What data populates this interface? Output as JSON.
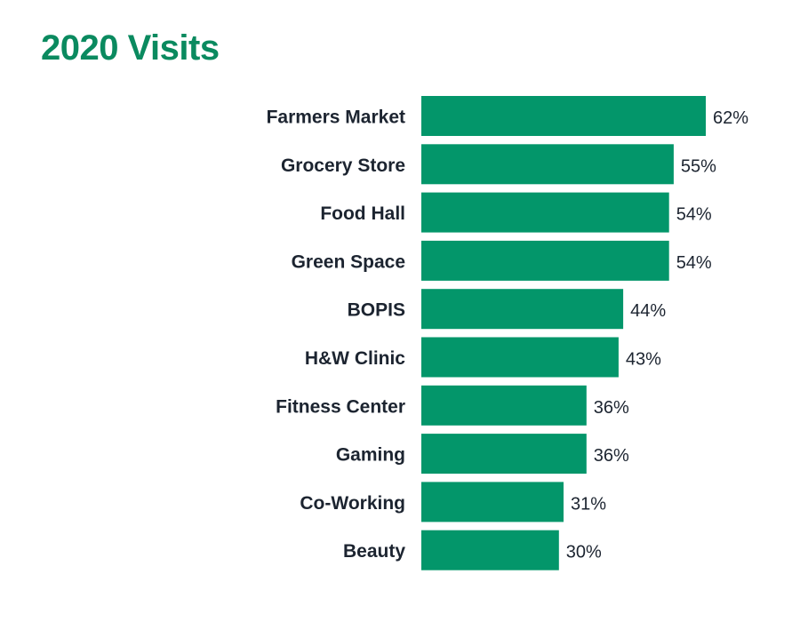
{
  "chart_data": {
    "type": "bar",
    "orientation": "horizontal",
    "title": "2020 Visits",
    "categories": [
      "Farmers Market",
      "Grocery Store",
      "Food Hall",
      "Green Space",
      "BOPIS",
      "H&W Clinic",
      "Fitness Center",
      "Gaming",
      "Co-Working",
      "Beauty"
    ],
    "values": [
      62,
      55,
      54,
      54,
      44,
      43,
      36,
      36,
      31,
      30
    ],
    "value_labels": [
      "62%",
      "55%",
      "54%",
      "54%",
      "44%",
      "43%",
      "36%",
      "36%",
      "31%",
      "30%"
    ],
    "unit": "%",
    "xlabel": "",
    "ylabel": "",
    "xlim": [
      0,
      62
    ],
    "grid": false,
    "legend": "none"
  },
  "colors": {
    "bar": "#03966a",
    "title": "#0a8a5f",
    "text": "#1c2430"
  }
}
